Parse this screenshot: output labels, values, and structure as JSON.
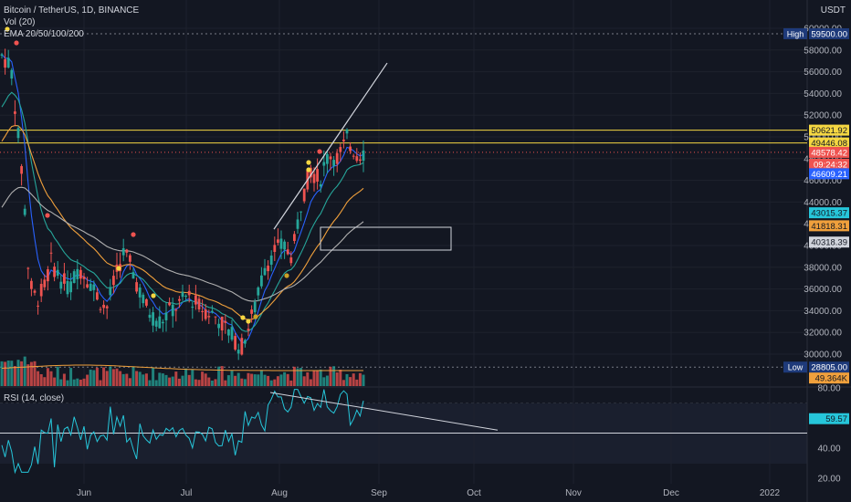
{
  "header": {
    "symbol_line": "Bitcoin / TetherUS, 1D, BINANCE",
    "vol_line": "Vol (20)",
    "ema_line": "EMA 20/50/100/200",
    "currency": "USDT"
  },
  "rsi_pane": {
    "title": "RSI (14, close)",
    "current_value": "59.57",
    "color": "#26c6da"
  },
  "chart_data": [
    {
      "type": "candlestick",
      "title": "Bitcoin / TetherUS, 1D, BINANCE",
      "x_ticks": [
        "Jun",
        "Jul",
        "Aug",
        "Sep",
        "Oct",
        "Nov",
        "Dec",
        "2022"
      ],
      "y_ticks": [
        30000,
        32000,
        34000,
        36000,
        38000,
        40000,
        42000,
        44000,
        46000,
        48000,
        50000,
        52000,
        54000,
        56000,
        58000,
        60000
      ],
      "ylim": [
        28000,
        61500
      ],
      "price_labels": [
        {
          "label": "High",
          "value": "59500.00",
          "price": 59500,
          "color": "#1e3a7a"
        },
        {
          "label": "",
          "value": "50621.92",
          "price": 50622,
          "color": "#f5d742"
        },
        {
          "label": "",
          "value": "49446.08",
          "price": 49446,
          "color": "#f5d742"
        },
        {
          "label": "",
          "value": "48578.42",
          "price": 48578,
          "color": "#ef5350"
        },
        {
          "label": "",
          "value": "09:24:32",
          "price": 47490,
          "color": "#ef5350"
        },
        {
          "label": "",
          "value": "46609.21",
          "price": 46609,
          "color": "#2962ff"
        },
        {
          "label": "",
          "value": "43015.37",
          "price": 43015,
          "color": "#26c6da"
        },
        {
          "label": "",
          "value": "41818.31",
          "price": 41818,
          "color": "#f0a03c"
        },
        {
          "label": "",
          "value": "40318.39",
          "price": 40318,
          "color": "#d1d4dc"
        },
        {
          "label": "Low",
          "value": "28805.00",
          "price": 28805,
          "color": "#1e3a7a"
        },
        {
          "label": "",
          "value": "49.364K",
          "price": 27800,
          "color": "#f0a03c"
        }
      ],
      "horizontal_lines": [
        {
          "price": 50622,
          "color": "#f5d742"
        },
        {
          "price": 49446,
          "color": "#f5d742"
        }
      ],
      "series": [
        {
          "name": "EMA 20",
          "color": "#2962ff"
        },
        {
          "name": "EMA 50",
          "color": "#26a69a"
        },
        {
          "name": "EMA 100",
          "color": "#f0a03c"
        },
        {
          "name": "EMA 200",
          "color": "#b0b0b0"
        },
        {
          "name": "Vol (20)",
          "color": "#f0a03c"
        }
      ]
    },
    {
      "type": "line",
      "title": "RSI (14, close)",
      "y_ticks": [
        20.0,
        40.0,
        80.0
      ],
      "ylim": [
        17,
        83
      ],
      "levels": [
        70,
        50
      ],
      "current": 59.57
    }
  ]
}
